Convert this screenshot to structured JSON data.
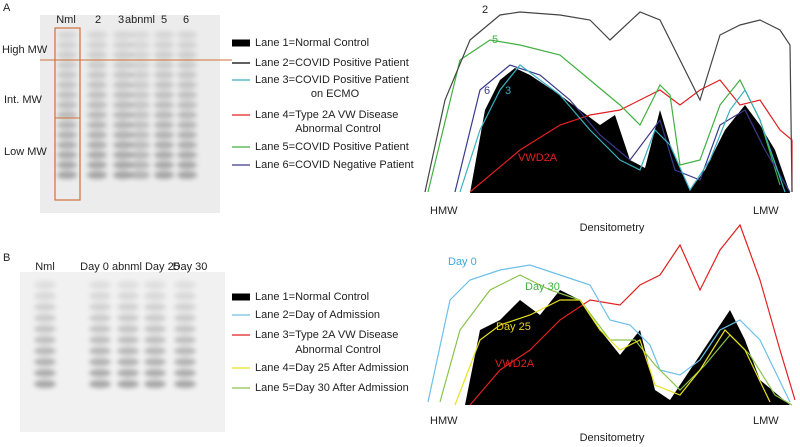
{
  "panels": [
    {
      "label": "A",
      "lanes": [
        "Nml",
        "2",
        "3",
        "abnml",
        "5",
        "6"
      ],
      "mw_labels": [
        "High MW",
        "Int. MW",
        "Low MW"
      ],
      "legend": [
        [
          "Lane 1=Normal Control"
        ],
        [
          "Lane 2=COVID Positive Patient"
        ],
        [
          "Lane 3=COVID Positive Patient",
          "on ECMO"
        ],
        [
          "Lane 4=Type 2A VW Disease",
          "Abnormal Control"
        ],
        [
          "Lane 5=COVID Positive Patient"
        ],
        [
          "Lane 6=COVID Negative Patient"
        ]
      ],
      "curve_labels": [
        "2",
        "5",
        "6",
        "3",
        "VWD2A"
      ],
      "x_start": "HMW",
      "x_end": "LMW",
      "x_title": "Densitometry"
    },
    {
      "label": "B",
      "lanes": [
        "Nml",
        "Day 0 abnml Day 25",
        "Day 30"
      ],
      "legend": [
        [
          "Lane 1=Normal Control"
        ],
        [
          "Lane 2=Day of Admission"
        ],
        [
          "Lane 3=Type 2A VW Disease",
          "Abnormal Control"
        ],
        [
          "Lane 4=Day 25 After Admission"
        ],
        [
          "Lane 5=Day 30 After Admission"
        ]
      ],
      "curve_labels": [
        "Day 0",
        "Day 30",
        "Day 25",
        "VWD2A"
      ],
      "x_start": "HMW",
      "x_end": "LMW",
      "x_title": "Densitometry"
    }
  ]
}
